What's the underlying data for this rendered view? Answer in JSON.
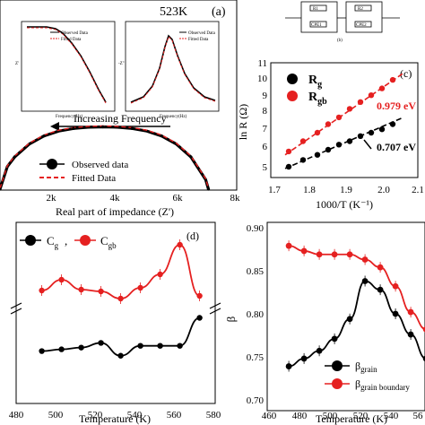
{
  "panel_a": {
    "panel_label": "(a)",
    "temperature": "523K",
    "arrow_label": "Increasing Frequency",
    "xlabel": "Real part of impedance (Z')",
    "xticks": [
      "2k",
      "4k",
      "6k",
      "8k"
    ],
    "legend": [
      "Observed data",
      "Fitted Data"
    ],
    "inset1": {
      "legend": [
        "Observed Data",
        "Fitted Data"
      ],
      "xlabel": "Frequency(Hz)",
      "ylabel": "Z'"
    },
    "inset2": {
      "legend": [
        "Observed Data",
        "Fitted Data"
      ],
      "xlabel": "Frequency(Hz)",
      "ylabel": "-Z''"
    }
  },
  "circuit": {
    "labels": [
      "R1",
      "R2",
      "CPE1",
      "CPE2"
    ],
    "caption": "(b)"
  },
  "panel_c": {
    "panel_label": "(c)",
    "xlabel": "1000/T (K⁻¹)",
    "ylabel": "ln R (Ω)",
    "xticks": [
      "1.7",
      "1.8",
      "1.9",
      "2.0",
      "2.1"
    ],
    "yticks": [
      "5",
      "6",
      "7",
      "8",
      "9",
      "10",
      "11"
    ],
    "legend": [
      {
        "main": "R",
        "sub": "g",
        "color": "#000000"
      },
      {
        "main": "R",
        "sub": "gb",
        "color": "#e52020"
      }
    ],
    "annotations": [
      "0.979 eV",
      "0.707 eV"
    ]
  },
  "panel_d": {
    "panel_label": "(d)",
    "xlabel": "Temperature (K)",
    "xticks": [
      "480",
      "500",
      "520",
      "540",
      "560",
      "580"
    ],
    "legend": [
      {
        "main": "C",
        "sub": "g",
        "color": "#000000"
      },
      {
        "main": "C",
        "sub": "gb",
        "color": "#e52020"
      }
    ]
  },
  "panel_e": {
    "xlabel": "Temperature (K)",
    "ylabel": "β",
    "xticks": [
      "460",
      "480",
      "500",
      "520",
      "540",
      "56"
    ],
    "yticks": [
      "0.70",
      "0.75",
      "0.80",
      "0.85",
      "0.90"
    ],
    "legend": [
      {
        "main": "β",
        "sub": "grain",
        "color": "#000000"
      },
      {
        "main": "β",
        "sub": "grain boundary",
        "color": "#e52020"
      }
    ]
  },
  "colors": {
    "black": "#000000",
    "red": "#e52020"
  },
  "chart_data": [
    {
      "type": "scatter",
      "panel": "a",
      "x": [
        0,
        250,
        500,
        1000,
        1500,
        2000,
        2500,
        3000,
        3500,
        4000,
        4500,
        5000,
        5500,
        6000,
        6500,
        7000,
        7100
      ],
      "y": [
        0,
        700,
        1000,
        1400,
        1650,
        1800,
        1880,
        1920,
        1930,
        1920,
        1880,
        1800,
        1650,
        1400,
        1000,
        300,
        0
      ],
      "series": [
        {
          "name": "Observed data"
        },
        {
          "name": "Fitted Data"
        }
      ],
      "xlim": [
        0,
        8000
      ]
    },
    {
      "type": "scatter",
      "panel": "c",
      "series": [
        {
          "name": "R_g",
          "x": [
            1.74,
            1.78,
            1.82,
            1.85,
            1.88,
            1.91,
            1.94,
            1.97,
            2.0,
            2.03
          ],
          "y": [
            5.0,
            5.4,
            5.7,
            6.0,
            6.3,
            6.5,
            6.8,
            7.0,
            7.2,
            7.5
          ]
        },
        {
          "name": "R_gb",
          "x": [
            1.74,
            1.78,
            1.82,
            1.85,
            1.88,
            1.91,
            1.94,
            1.97,
            2.0,
            2.03
          ],
          "y": [
            5.9,
            6.5,
            7.0,
            7.5,
            7.9,
            8.4,
            8.8,
            9.2,
            9.6,
            10.1
          ]
        }
      ],
      "fits": [
        {
          "name": "R_g",
          "x": [
            1.73,
            2.06
          ],
          "y": [
            4.9,
            7.9
          ]
        },
        {
          "name": "R_gb",
          "x": [
            1.73,
            2.06
          ],
          "y": [
            5.7,
            10.5
          ]
        }
      ],
      "xlim": [
        1.7,
        2.1
      ],
      "ylim": [
        4.5,
        11
      ]
    },
    {
      "type": "line",
      "panel": "d",
      "series": [
        {
          "name": "C_g",
          "x": [
            493,
            503,
            513,
            523,
            533,
            543,
            553,
            563,
            573
          ],
          "y": [
            0.13,
            0.16,
            0.19,
            0.27,
            0.05,
            0.22,
            0.22,
            0.22,
            0.7
          ]
        },
        {
          "name": "C_gb",
          "x": [
            493,
            503,
            513,
            523,
            533,
            543,
            553,
            563,
            573
          ],
          "y": [
            0.46,
            0.58,
            0.47,
            0.45,
            0.37,
            0.49,
            0.64,
            0.97,
            0.4
          ]
        }
      ],
      "xlim": [
        480,
        580
      ],
      "note": "y in relative units (axis tick labels not legible)"
    },
    {
      "type": "line",
      "panel": "e",
      "series": [
        {
          "name": "beta_grain",
          "x": [
            473,
            483,
            493,
            503,
            513,
            523,
            533,
            543,
            553,
            563
          ],
          "y": [
            0.739,
            0.748,
            0.757,
            0.771,
            0.794,
            0.838,
            0.828,
            0.8,
            0.776,
            0.748
          ]
        },
        {
          "name": "beta_grain_boundary",
          "x": [
            473,
            483,
            493,
            503,
            513,
            523,
            533,
            543,
            553,
            563
          ],
          "y": [
            0.879,
            0.873,
            0.869,
            0.869,
            0.869,
            0.863,
            0.854,
            0.832,
            0.802,
            0.782
          ]
        }
      ],
      "xlim": [
        460,
        565
      ],
      "ylim": [
        0.68,
        0.9
      ]
    }
  ]
}
